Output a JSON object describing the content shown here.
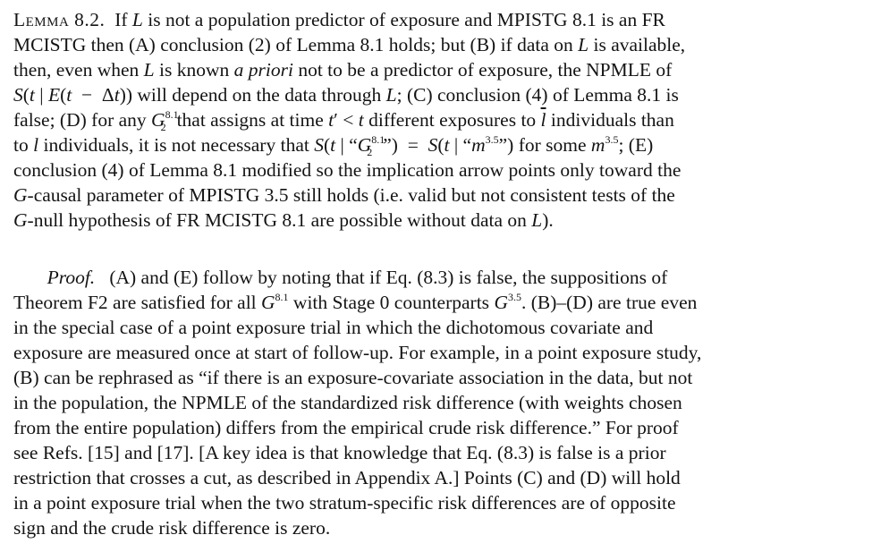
{
  "lemma": {
    "label": "Lemma 8.2.",
    "lines": [
      "If L is not a population predictor of exposure and MPISTG 8.1 is an FR",
      "MCISTG then (A) conclusion (2) of Lemma 8.1 holds; but (B) if data on L is available,",
      "then, even when L is known a priori not to be a predictor of exposure, the NPMLE of",
      "S(t | E(t − Δt)) will depend on the data through L; (C) conclusion (4) of Lemma 8.1 is",
      "false; (D) for any G₂^8.1 that assigns at time t′ < t different exposures to l̄ individuals than",
      "to l individuals, it is not necessary that S(t | “G₂^8.1”) = S(t | “m^3.5”) for some m^3.5; (E)",
      "conclusion (4) of Lemma 8.1 modified so the implication arrow points only toward the",
      "G-causal parameter of MPISTG 3.5 still holds (i.e. valid but not consistent tests of the",
      "G-null hypothesis of FR MCISTG 8.1 are possible without data on L)."
    ]
  },
  "proof": {
    "label": "Proof.",
    "lines": [
      "(A) and (E) follow by noting that if Eq. (8.3) is false, the suppositions of",
      "Theorem F2 are satisfied for all G^8.1 with Stage 0 counterparts G^3.5. (B)–(D) are true even",
      "in the special case of a point exposure trial in which the dichotomous covariate and",
      "exposure are measured once at start of follow-up. For example, in a point exposure study,",
      "(B) can be rephrased as “if there is an exposure-covariate association in the data, but not",
      "in the population, the NPMLE of the standardized risk difference (with weights chosen",
      "from the entire population) differs from the empirical crude risk difference.” For proof",
      "see Refs. [15] and [17]. [A key idea is that knowledge that Eq. (8.3) is false is a prior",
      "restriction that crosses a cut, as described in Appendix A.] Points (C) and (D) will hold",
      "in a point exposure trial when the two stratum-specific risk differences are of opposite",
      "sign and the crude risk difference is zero."
    ]
  }
}
